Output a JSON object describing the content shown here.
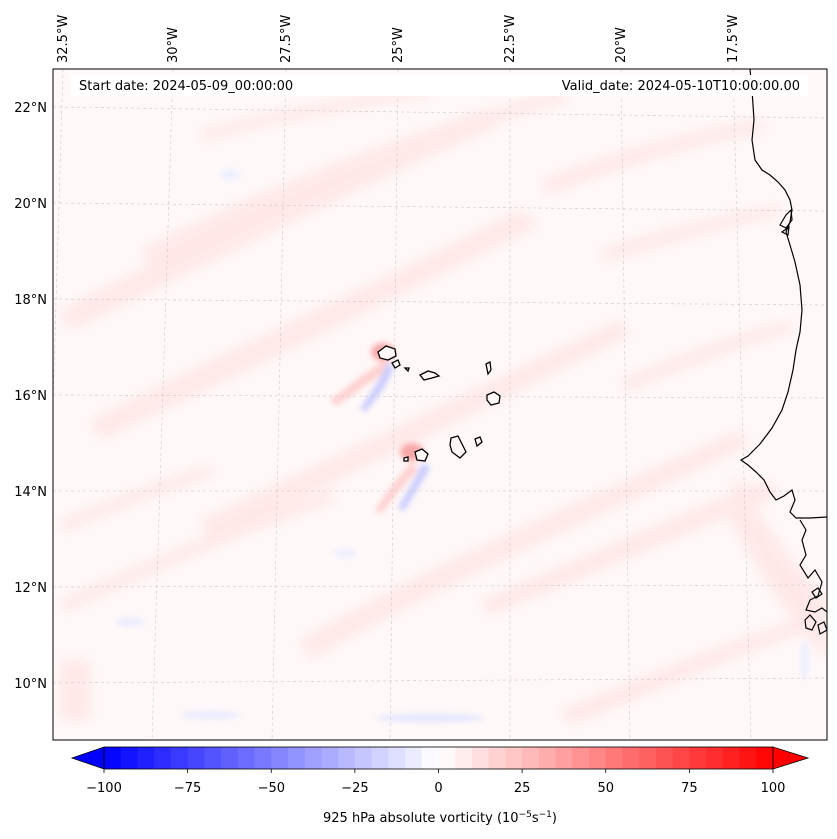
{
  "map": {
    "start_date": "Start date: 2024-05-09_00:00:00",
    "valid_date": "Valid_date: 2024-05-10T10:00:00.00",
    "longitude_labels": [
      "32.5°W",
      "30°W",
      "27.5°W",
      "25°W",
      "22.5°W",
      "20°W",
      "17.5°W"
    ],
    "latitude_labels": [
      "22°N",
      "20°N",
      "18°N",
      "16°N",
      "14°N",
      "12°N",
      "10°N"
    ]
  },
  "colorbar": {
    "min": -100,
    "max": 100,
    "levels": 41,
    "tick_labels": [
      "−100",
      "−75",
      "−50",
      "−25",
      "0",
      "25",
      "50",
      "75",
      "100"
    ],
    "title_prefix": "925 hPa absolute vorticity (10",
    "title_exp1": "−5",
    "title_mid": "s",
    "title_exp2": "−1",
    "title_suffix": ")",
    "color_negative": "#0000ff",
    "color_zero": "#ffffff",
    "color_positive": "#ff0000"
  }
}
